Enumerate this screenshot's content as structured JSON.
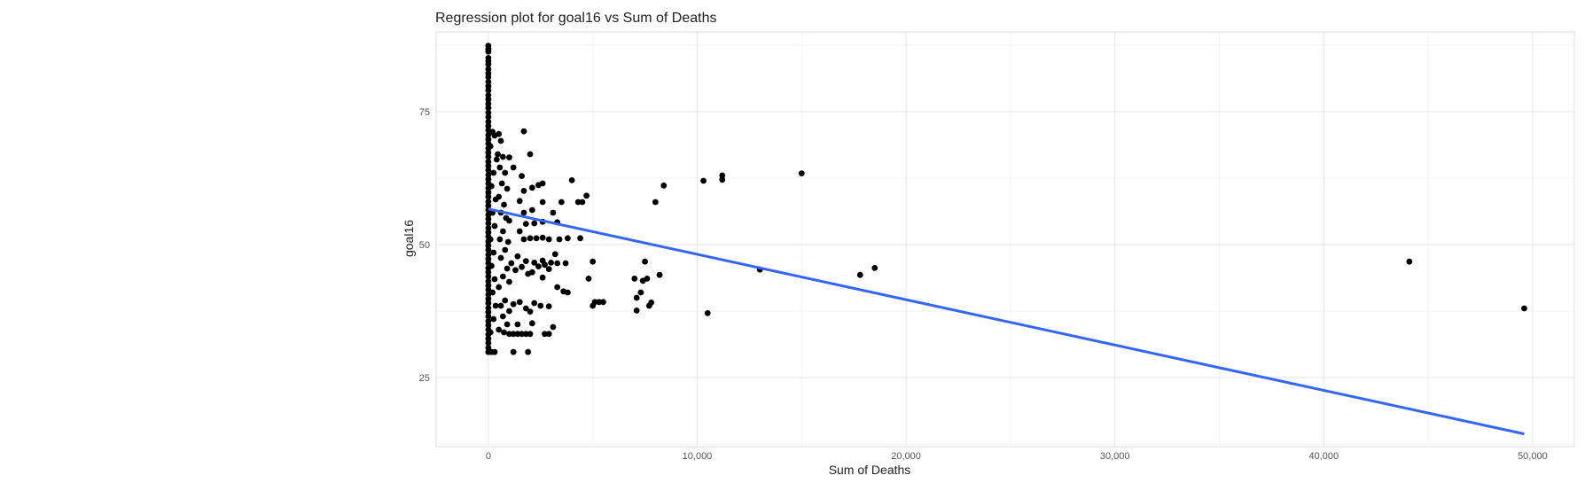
{
  "chart_data": {
    "type": "scatter",
    "title": "Regression plot for goal16 vs Sum of Deaths",
    "xlabel": "Sum of Deaths",
    "ylabel": "goal16",
    "xlim": [
      -2500,
      52000
    ],
    "ylim": [
      12,
      90
    ],
    "x_ticks": [
      0,
      10000,
      20000,
      30000,
      40000,
      50000
    ],
    "x_tick_labels": [
      "0",
      "10,000",
      "20,000",
      "30,000",
      "40,000",
      "50,000"
    ],
    "y_ticks": [
      25,
      50,
      75
    ],
    "y_tick_labels": [
      "25",
      "50",
      "75"
    ],
    "grid": true,
    "legend": "none",
    "point_color": "#000000",
    "line_color": "#3366FF",
    "regression_line": {
      "x": [
        0,
        49600
      ],
      "y": [
        56.7,
        14.4
      ]
    },
    "points": [
      [
        0,
        87.4
      ],
      [
        0,
        86.8
      ],
      [
        0,
        86.3
      ],
      [
        0,
        85.1
      ],
      [
        0,
        84.5
      ],
      [
        0,
        83.9
      ],
      [
        0,
        83.0
      ],
      [
        0,
        82.2
      ],
      [
        0,
        81.5
      ],
      [
        0,
        80.6
      ],
      [
        0,
        79.8
      ],
      [
        0,
        79.0
      ],
      [
        0,
        78.1
      ],
      [
        0,
        77.3
      ],
      [
        0,
        76.5
      ],
      [
        0,
        75.7
      ],
      [
        0,
        74.8
      ],
      [
        0,
        74.0
      ],
      [
        0,
        73.1
      ],
      [
        0,
        72.3
      ],
      [
        0,
        71.5
      ],
      [
        0,
        70.6
      ],
      [
        0,
        69.8
      ],
      [
        0,
        69.0
      ],
      [
        0,
        68.1
      ],
      [
        0,
        67.3
      ],
      [
        0,
        66.5
      ],
      [
        0,
        65.6
      ],
      [
        0,
        64.8
      ],
      [
        0,
        64.0
      ],
      [
        0,
        63.1
      ],
      [
        0,
        62.3
      ],
      [
        0,
        61.5
      ],
      [
        0,
        60.6
      ],
      [
        0,
        59.8
      ],
      [
        0,
        59.0
      ],
      [
        0,
        58.1
      ],
      [
        0,
        57.3
      ],
      [
        0,
        56.5
      ],
      [
        0,
        55.6
      ],
      [
        0,
        54.8
      ],
      [
        0,
        54.0
      ],
      [
        0,
        53.1
      ],
      [
        0,
        52.3
      ],
      [
        0,
        51.5
      ],
      [
        0,
        50.6
      ],
      [
        0,
        49.8
      ],
      [
        0,
        49.0
      ],
      [
        0,
        48.1
      ],
      [
        0,
        47.3
      ],
      [
        0,
        46.5
      ],
      [
        0,
        45.6
      ],
      [
        0,
        44.8
      ],
      [
        0,
        44.0
      ],
      [
        0,
        43.1
      ],
      [
        0,
        42.3
      ],
      [
        0,
        41.5
      ],
      [
        0,
        40.6
      ],
      [
        0,
        39.8
      ],
      [
        0,
        39.0
      ],
      [
        0,
        38.1
      ],
      [
        0,
        37.3
      ],
      [
        0,
        36.5
      ],
      [
        0,
        35.6
      ],
      [
        0,
        34.8
      ],
      [
        0,
        34.0
      ],
      [
        0,
        33.1
      ],
      [
        0,
        32.3
      ],
      [
        0,
        31.5
      ],
      [
        0,
        30.6
      ],
      [
        0,
        29.8
      ],
      [
        150,
        29.8
      ],
      [
        300,
        29.8
      ],
      [
        100,
        33.5
      ],
      [
        250,
        36.0
      ],
      [
        350,
        38.5
      ],
      [
        200,
        41.0
      ],
      [
        300,
        43.5
      ],
      [
        150,
        46.0
      ],
      [
        250,
        48.5
      ],
      [
        100,
        51.0
      ],
      [
        300,
        53.5
      ],
      [
        200,
        56.0
      ],
      [
        350,
        58.5
      ],
      [
        150,
        61.0
      ],
      [
        250,
        63.5
      ],
      [
        400,
        66.0
      ],
      [
        100,
        68.5
      ],
      [
        300,
        70.5
      ],
      [
        200,
        71.2
      ],
      [
        500,
        70.8
      ],
      [
        600,
        69.5
      ],
      [
        450,
        67.0
      ],
      [
        700,
        66.5
      ],
      [
        550,
        64.5
      ],
      [
        800,
        63.5
      ],
      [
        650,
        61.5
      ],
      [
        900,
        60.5
      ],
      [
        500,
        59.0
      ],
      [
        750,
        57.5
      ],
      [
        600,
        56.0
      ],
      [
        850,
        55.0
      ],
      [
        1000,
        54.5
      ],
      [
        700,
        52.5
      ],
      [
        550,
        51.0
      ],
      [
        950,
        50.5
      ],
      [
        800,
        49.0
      ],
      [
        600,
        47.5
      ],
      [
        1100,
        46.5
      ],
      [
        900,
        45.5
      ],
      [
        700,
        44.0
      ],
      [
        1000,
        43.0
      ],
      [
        500,
        42.0
      ],
      [
        800,
        39.5
      ],
      [
        600,
        38.5
      ],
      [
        1000,
        37.5
      ],
      [
        700,
        36.5
      ],
      [
        900,
        35.0
      ],
      [
        500,
        34.0
      ],
      [
        750,
        33.5
      ],
      [
        1000,
        33.2
      ],
      [
        1200,
        33.2
      ],
      [
        1400,
        33.2
      ],
      [
        1600,
        33.2
      ],
      [
        1800,
        33.2
      ],
      [
        2000,
        33.2
      ],
      [
        2700,
        33.2
      ],
      [
        2900,
        33.2
      ],
      [
        1200,
        29.8
      ],
      [
        1900,
        29.8
      ],
      [
        1200,
        38.8
      ],
      [
        1500,
        39.2
      ],
      [
        1800,
        38.0
      ],
      [
        2000,
        37.4
      ],
      [
        2200,
        39.0
      ],
      [
        2500,
        38.5
      ],
      [
        2900,
        38.4
      ],
      [
        1400,
        35.0
      ],
      [
        2100,
        35.2
      ],
      [
        3100,
        34.5
      ],
      [
        1300,
        45.2
      ],
      [
        1600,
        45.8
      ],
      [
        1900,
        44.5
      ],
      [
        2100,
        44.8
      ],
      [
        2400,
        45.9
      ],
      [
        2700,
        46.2
      ],
      [
        2900,
        45.4
      ],
      [
        3300,
        46.5
      ],
      [
        3700,
        46.5
      ],
      [
        2600,
        43.8
      ],
      [
        1400,
        47.8
      ],
      [
        1800,
        46.9
      ],
      [
        2200,
        46.6
      ],
      [
        2600,
        47.0
      ],
      [
        3000,
        46.6
      ],
      [
        1700,
        51.0
      ],
      [
        2000,
        51.2
      ],
      [
        2300,
        51.2
      ],
      [
        2600,
        51.3
      ],
      [
        2900,
        51.0
      ],
      [
        3400,
        51.0
      ],
      [
        1500,
        52.5
      ],
      [
        1800,
        53.9
      ],
      [
        2200,
        54.0
      ],
      [
        2600,
        54.3
      ],
      [
        3300,
        54.2
      ],
      [
        1700,
        56.0
      ],
      [
        2100,
        56.5
      ],
      [
        3100,
        56.0
      ],
      [
        2600,
        58.0
      ],
      [
        1500,
        58.2
      ],
      [
        1700,
        60.1
      ],
      [
        2100,
        60.7
      ],
      [
        2400,
        61.2
      ],
      [
        2600,
        61.5
      ],
      [
        2000,
        67.0
      ],
      [
        1700,
        71.3
      ],
      [
        1200,
        64.5
      ],
      [
        1000,
        66.4
      ],
      [
        1600,
        62.9
      ],
      [
        3500,
        58.0
      ],
      [
        3200,
        48.2
      ],
      [
        3300,
        42.0
      ],
      [
        3600,
        41.2
      ],
      [
        3800,
        41.0
      ],
      [
        4000,
        62.1
      ],
      [
        4300,
        58.0
      ],
      [
        4500,
        58.0
      ],
      [
        4700,
        59.2
      ],
      [
        4800,
        43.6
      ],
      [
        5000,
        46.8
      ],
      [
        5000,
        38.5
      ],
      [
        5100,
        39.2
      ],
      [
        5300,
        39.2
      ],
      [
        5500,
        39.2
      ],
      [
        3800,
        51.2
      ],
      [
        4400,
        51.2
      ],
      [
        7000,
        43.6
      ],
      [
        7100,
        40.0
      ],
      [
        7300,
        41.0
      ],
      [
        7100,
        37.6
      ],
      [
        7400,
        43.2
      ],
      [
        7500,
        46.8
      ],
      [
        7600,
        43.6
      ],
      [
        7700,
        38.5
      ],
      [
        7800,
        39.1
      ],
      [
        8000,
        58.0
      ],
      [
        8200,
        44.3
      ],
      [
        8400,
        61.1
      ],
      [
        10300,
        62.0
      ],
      [
        10500,
        37.1
      ],
      [
        11200,
        63.0
      ],
      [
        11200,
        62.2
      ],
      [
        13000,
        45.3
      ],
      [
        15000,
        63.4
      ],
      [
        17800,
        44.3
      ],
      [
        18500,
        45.6
      ],
      [
        44100,
        46.8
      ],
      [
        49600,
        38.0
      ]
    ]
  }
}
